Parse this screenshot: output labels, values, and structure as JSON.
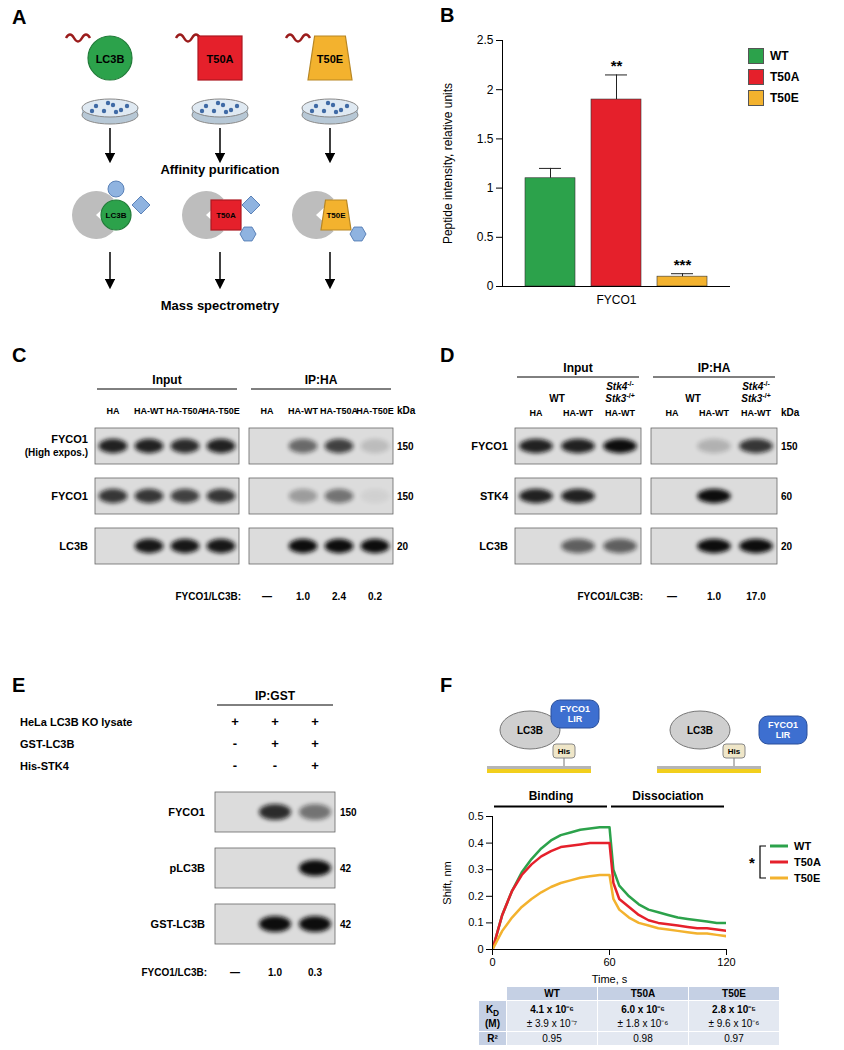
{
  "diagram_A": {
    "title": "A",
    "baits": [
      {
        "label": "LC3B",
        "color": "#2ca24b",
        "shape": "circle"
      },
      {
        "label": "T50A",
        "color": "#e5202b",
        "shape": "square"
      },
      {
        "label": "T50E",
        "color": "#f3b22e",
        "shape": "trapezoid"
      }
    ],
    "steps": [
      "Affinity purification",
      "Mass spectrometry"
    ]
  },
  "chart_data": [
    {
      "type": "bar",
      "title": "B",
      "y_label": "Peptide intensity, relative units",
      "categories": [
        "FYCO1"
      ],
      "series": [
        {
          "name": "WT",
          "color": "#2ca24b",
          "values": [
            1.1
          ],
          "errors": [
            0.1
          ]
        },
        {
          "name": "T50A",
          "color": "#e5202b",
          "values": [
            1.9
          ],
          "errors": [
            0.25
          ]
        },
        {
          "name": "T50E",
          "color": "#f3b22e",
          "values": [
            0.1
          ],
          "errors": [
            0.03
          ]
        }
      ],
      "annotations": [
        {
          "series": "T50A",
          "text": "**"
        },
        {
          "series": "T50E",
          "text": "***"
        }
      ],
      "ylim": [
        0,
        2.5
      ],
      "yticks": [
        0,
        0.5,
        1,
        1.5,
        2,
        2.5
      ],
      "legend": "right"
    },
    {
      "type": "line",
      "title": "F",
      "x_label": "Time, s",
      "y_label": "Shift, nm",
      "schematic": [
        "LC3B",
        "FYCO1 LIR",
        "His"
      ],
      "x": [
        0,
        5,
        10,
        15,
        20,
        25,
        30,
        35,
        40,
        45,
        50,
        55,
        60,
        62,
        65,
        70,
        75,
        80,
        85,
        90,
        95,
        100,
        105,
        110,
        115,
        120
      ],
      "series": [
        {
          "name": "WT",
          "color": "#2ca24b",
          "values": [
            0,
            0.13,
            0.22,
            0.29,
            0.34,
            0.38,
            0.41,
            0.43,
            0.44,
            0.45,
            0.455,
            0.46,
            0.46,
            0.3,
            0.24,
            0.2,
            0.17,
            0.15,
            0.14,
            0.13,
            0.12,
            0.115,
            0.11,
            0.105,
            0.1,
            0.1
          ]
        },
        {
          "name": "T50A",
          "color": "#e5202b",
          "values": [
            0,
            0.13,
            0.22,
            0.28,
            0.32,
            0.35,
            0.37,
            0.385,
            0.39,
            0.395,
            0.4,
            0.4,
            0.4,
            0.25,
            0.19,
            0.16,
            0.13,
            0.11,
            0.1,
            0.095,
            0.09,
            0.085,
            0.08,
            0.08,
            0.075,
            0.07
          ]
        },
        {
          "name": "T50E",
          "color": "#f3b22e",
          "values": [
            0,
            0.07,
            0.12,
            0.16,
            0.19,
            0.215,
            0.235,
            0.25,
            0.26,
            0.27,
            0.275,
            0.28,
            0.28,
            0.19,
            0.15,
            0.12,
            0.1,
            0.09,
            0.08,
            0.075,
            0.07,
            0.065,
            0.06,
            0.06,
            0.055,
            0.05
          ]
        }
      ],
      "annotations": [
        {
          "text": "Binding",
          "x": [
            0,
            60
          ]
        },
        {
          "text": "Dissociation",
          "x": [
            60,
            120
          ]
        },
        {
          "text": "*",
          "series": [
            "WT",
            "T50E"
          ]
        }
      ],
      "xlim": [
        0,
        120
      ],
      "xticks": [
        0,
        60,
        120
      ],
      "ylim": [
        0,
        0.5
      ],
      "yticks": [
        0,
        0.1,
        0.2,
        0.3,
        0.4,
        0.5
      ],
      "legend": "right"
    }
  ],
  "table_F": {
    "columns": [
      "WT",
      "T50A",
      "T50E"
    ],
    "rows": [
      {
        "label": "K",
        "subscript": "D",
        "unit": "(M)",
        "cells": [
          {
            "value": "4.1 x 10⁻⁶",
            "error": "± 3.9 x 10⁻⁷"
          },
          {
            "value": "6.0 x 10⁻⁶",
            "error": "± 1.8 x 10⁻⁶"
          },
          {
            "value": "2.8 x 10⁻⁵",
            "error": "± 9.6 x 10⁻⁶"
          }
        ]
      },
      {
        "label": "R²",
        "cells": [
          0.95,
          0.98,
          0.97
        ]
      }
    ]
  },
  "blots": [
    {
      "title": "C",
      "kDa_label": "kDa",
      "groups": [
        {
          "label": "Input",
          "lanes": [
            "HA",
            "HA-WT",
            "HA-T50A",
            "HA-T50E"
          ]
        },
        {
          "label": "IP:HA",
          "lanes": [
            "HA",
            "HA-WT",
            "HA-T50A",
            "HA-T50E"
          ]
        }
      ],
      "rows": [
        {
          "label": "FYCO1",
          "note": "(High expos.)",
          "kDa": 150,
          "intensity": [
            0.9,
            0.9,
            0.85,
            0.9,
            0,
            0.55,
            0.75,
            0.15
          ]
        },
        {
          "label": "FYCO1",
          "kDa": 150,
          "intensity": [
            0.8,
            0.8,
            0.75,
            0.8,
            0,
            0.3,
            0.5,
            0.05
          ]
        },
        {
          "label": "LC3B",
          "kDa": 20,
          "intensity": [
            0,
            0.95,
            0.95,
            0.95,
            0,
            1,
            1,
            1
          ]
        }
      ],
      "ratio": {
        "label": "FYCO1/LC3B:",
        "values": [
          "—",
          "1.0",
          "2.4",
          "0.2"
        ]
      }
    },
    {
      "title": "D",
      "kDa_label": "kDa",
      "groups": [
        {
          "label": "Input",
          "lanes": [
            "HA",
            "HA-WT",
            "HA-WT"
          ],
          "genotypes": [
            {
              "span": 2,
              "parts": [
                {
                  "text": "WT"
                }
              ]
            },
            {
              "span": 1,
              "parts": [
                {
                  "text": "Stk4",
                  "sup": "-/-"
                },
                {
                  "text": "Stk3",
                  "sup": "-/+"
                }
              ]
            }
          ]
        },
        {
          "label": "IP:HA",
          "lanes": [
            "HA",
            "HA-WT",
            "HA-WT"
          ],
          "genotypes": [
            {
              "span": 2,
              "parts": [
                {
                  "text": "WT"
                }
              ]
            },
            {
              "span": 1,
              "parts": [
                {
                  "text": "Stk4",
                  "sup": "-/-"
                },
                {
                  "text": "Stk3",
                  "sup": "-/+"
                }
              ]
            }
          ]
        }
      ],
      "rows": [
        {
          "label": "FYCO1",
          "kDa": 150,
          "intensity": [
            0.9,
            0.9,
            1,
            0,
            0.2,
            0.8
          ]
        },
        {
          "label": "STK4",
          "kDa": 60,
          "intensity": [
            0.9,
            0.9,
            0,
            0,
            1,
            0
          ]
        },
        {
          "label": "LC3B",
          "kDa": 20,
          "intensity": [
            0,
            0.6,
            0.6,
            0,
            1,
            1
          ]
        }
      ],
      "ratio": {
        "label": "FYCO1/LC3B:",
        "values": [
          "—",
          "1.0",
          "17.0"
        ]
      }
    },
    {
      "title": "E",
      "groups": [
        {
          "label": "IP:GST"
        }
      ],
      "conditions": [
        {
          "label": "HeLa LC3B KO lysate",
          "marks": [
            "+",
            "+",
            "+"
          ]
        },
        {
          "label": "GST-LC3B",
          "marks": [
            "-",
            "+",
            "+"
          ]
        },
        {
          "label": "His-STK4",
          "marks": [
            "-",
            "-",
            "+"
          ]
        }
      ],
      "rows": [
        {
          "label": "FYCO1",
          "kDa": 150,
          "intensity": [
            0,
            0.85,
            0.5
          ]
        },
        {
          "label": "pLC3B",
          "kDa": 42,
          "intensity": [
            0,
            0,
            1
          ]
        },
        {
          "label": "GST-LC3B",
          "kDa": 42,
          "intensity": [
            0,
            1,
            1
          ]
        }
      ],
      "ratio": {
        "label": "FYCO1/LC3B:",
        "values": [
          "—",
          "1.0",
          "0.3"
        ]
      }
    }
  ]
}
